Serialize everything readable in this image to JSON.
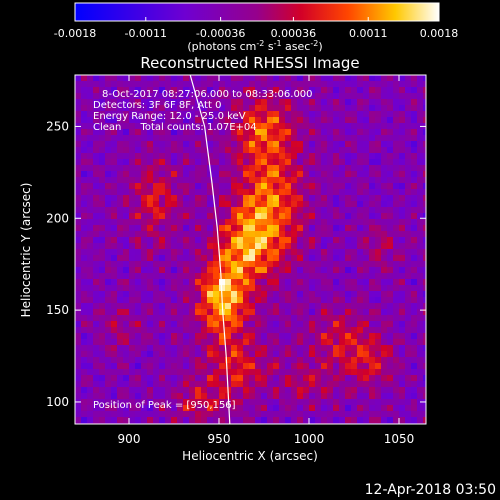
{
  "chart_data": {
    "type": "heatmap",
    "title": "Reconstructed RHESSI Image",
    "xlabel": "Heliocentric X (arcsec)",
    "ylabel": "Heliocentric Y (arcsec)",
    "xlim": [
      870,
      1065
    ],
    "ylim": [
      88,
      278
    ],
    "x_ticks": [
      900,
      950,
      1000,
      1050
    ],
    "y_ticks": [
      100,
      150,
      200,
      250
    ],
    "colorbar": {
      "ticks": [
        "-0.0018",
        "-0.0011",
        "-0.00036",
        "0.00036",
        "0.0011",
        "0.0018"
      ],
      "tick_values": [
        -0.0018,
        -0.0011,
        -0.00036,
        0.00036,
        0.0011,
        0.0018
      ],
      "unit_label": "(photons cm",
      "unit_sup1": "-2",
      "unit_mid": " s",
      "unit_sup2": "-1",
      "unit_mid2": " asec",
      "unit_sup3": "-2",
      "unit_end": ")"
    },
    "info_lines": [
      "8-Oct-2017 08:27:06.000 to 08:33:06.000",
      "Detectors: 3F 6F 8F, Att 0",
      "Energy Range: 12.0 - 25.0 keV",
      "Clean      Total counts: 1.07E+04"
    ],
    "peak_label": "Position of Peak = [950,156]",
    "peak": [
      950,
      156
    ],
    "emission_blobs": [
      {
        "x": 952,
        "y": 156,
        "amp": 0.0018,
        "sx": 10,
        "sy": 14
      },
      {
        "x": 978,
        "y": 210,
        "amp": 0.0013,
        "sx": 14,
        "sy": 26
      },
      {
        "x": 965,
        "y": 185,
        "amp": 0.0011,
        "sx": 12,
        "sy": 14
      },
      {
        "x": 975,
        "y": 250,
        "amp": 0.0009,
        "sx": 12,
        "sy": 12
      },
      {
        "x": 915,
        "y": 210,
        "amp": 0.00085,
        "sx": 10,
        "sy": 16
      },
      {
        "x": 960,
        "y": 120,
        "amp": 0.0009,
        "sx": 14,
        "sy": 12
      },
      {
        "x": 1018,
        "y": 135,
        "amp": 0.0008,
        "sx": 12,
        "sy": 12
      },
      {
        "x": 1035,
        "y": 120,
        "amp": 0.00075,
        "sx": 10,
        "sy": 10
      },
      {
        "x": 940,
        "y": 100,
        "amp": 0.0007,
        "sx": 12,
        "sy": 8
      },
      {
        "x": 1000,
        "y": 110,
        "amp": 0.0006,
        "sx": 10,
        "sy": 8
      },
      {
        "x": 895,
        "y": 140,
        "amp": 0.00055,
        "sx": 8,
        "sy": 8
      },
      {
        "x": 1040,
        "y": 185,
        "amp": 0.0005,
        "sx": 8,
        "sy": 10
      }
    ],
    "limb_arc": [
      [
        934,
        278
      ],
      [
        942,
        250
      ],
      [
        946,
        220
      ],
      [
        949,
        195
      ],
      [
        951,
        170
      ],
      [
        952,
        150
      ],
      [
        954,
        125
      ],
      [
        956,
        88
      ]
    ],
    "grid": false
  },
  "timestamp": "12-Apr-2018 03:50",
  "colors": {
    "background": "#000000",
    "text": "#ffffff",
    "limb": "#ffffff"
  }
}
